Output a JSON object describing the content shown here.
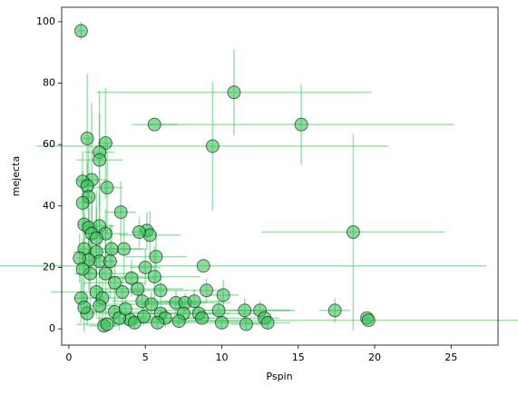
{
  "chart_data": {
    "type": "scatter",
    "xlabel": "Pspin",
    "ylabel": "mejecta",
    "color": "#3cc35a",
    "edgecolor": "#000000",
    "x": [
      0.8,
      10.8,
      15.2,
      5.6,
      9.4,
      18.6,
      8.8,
      17.4,
      19.5,
      19.6,
      1.2,
      2.4,
      2.0,
      2.0,
      1.5,
      0.9,
      1.2,
      2.5,
      1.3,
      0.9,
      3.4,
      1.0,
      1.3,
      2.0,
      1.5,
      2.4,
      1.8,
      5.1,
      5.3,
      4.6,
      3.6,
      2.8,
      1.8,
      1.0,
      5.7,
      2.0,
      1.3,
      0.7,
      5.0,
      2.7,
      5.6,
      4.1,
      2.4,
      1.4,
      0.9,
      3.0,
      4.5,
      6.0,
      9.0,
      10.1,
      3.5,
      1.8,
      0.8,
      2.2,
      7.0,
      7.6,
      8.2,
      4.8,
      5.4,
      12.5,
      11.5,
      9.8,
      8.5,
      7.5,
      6.0,
      3.0,
      1.2,
      12.8,
      13.0,
      11.6,
      10.0,
      8.7,
      7.2,
      6.3,
      5.8,
      4.0,
      2.3,
      2.5,
      3.3,
      1.0,
      4.3,
      4.9,
      3.7,
      2.0
    ],
    "values": [
      97,
      77,
      66.5,
      66.5,
      59.5,
      31.5,
      20.5,
      6,
      3.5,
      2.8,
      62,
      60.5,
      57.5,
      55,
      48.5,
      48,
      46.5,
      46,
      43,
      41,
      38,
      34,
      33,
      33.5,
      31,
      31,
      29.5,
      32,
      30.5,
      31.5,
      26,
      26,
      25,
      26,
      23.5,
      22,
      22.5,
      23,
      20,
      22,
      17,
      16.5,
      18,
      18,
      19.5,
      15,
      13,
      12.5,
      12.5,
      11,
      12,
      12,
      10,
      10,
      8.5,
      8.5,
      9,
      9,
      8,
      6,
      6,
      6,
      5,
      5,
      5,
      5.5,
      5,
      3.5,
      2,
      1.5,
      2,
      3.5,
      2.5,
      3.5,
      2,
      3,
      1,
      1.5,
      3.5,
      7,
      2,
      4,
      6.5,
      7.5
    ],
    "xerr": [
      0.2,
      9,
      10,
      1.5,
      11.5,
      6,
      18.5,
      1,
      0,
      13,
      0.3,
      0.5,
      1,
      1.5,
      1,
      0.3,
      0.4,
      1,
      0.3,
      0.3,
      1,
      0.4,
      0.4,
      1,
      0.5,
      1.5,
      0.8,
      0.5,
      2,
      0.5,
      1.5,
      2,
      1.5,
      0.3,
      2,
      1,
      0.5,
      0.2,
      1,
      0.5,
      3,
      1.5,
      2,
      1,
      0.4,
      2,
      3,
      2,
      1,
      1,
      1.5,
      3,
      0.5,
      1.5,
      2,
      3,
      2,
      2,
      3,
      2,
      3,
      5,
      4,
      3,
      4,
      2,
      0.5,
      1,
      1.5,
      1,
      3,
      3,
      4,
      3,
      2,
      2,
      1,
      2,
      1.5,
      0.4,
      2,
      1,
      1.5,
      1
    ],
    "yerr": [
      3,
      14,
      13,
      0,
      21,
      32,
      0,
      4,
      1,
      1,
      21,
      18,
      20,
      15,
      25,
      10,
      8,
      15,
      20,
      10,
      10,
      15,
      12,
      10,
      12,
      8,
      10,
      6,
      8,
      5,
      10,
      8,
      20,
      12,
      8,
      15,
      10,
      8,
      6,
      12,
      10,
      6,
      15,
      12,
      10,
      6,
      5,
      5,
      4,
      5,
      5,
      8,
      8,
      10,
      4,
      3,
      4,
      5,
      4,
      3,
      4,
      3,
      3,
      3,
      2,
      5,
      4,
      2,
      2,
      2,
      2,
      2,
      2,
      3,
      2,
      2,
      2,
      2,
      4,
      8,
      2,
      3,
      4,
      6
    ],
    "xlim": [
      -0.47,
      28.07
    ],
    "ylim": [
      -5.3,
      104.7
    ],
    "xticks": [
      0,
      5,
      10,
      15,
      20,
      25
    ],
    "yticks": [
      0,
      20,
      40,
      60,
      80,
      100
    ],
    "grid": false
  }
}
